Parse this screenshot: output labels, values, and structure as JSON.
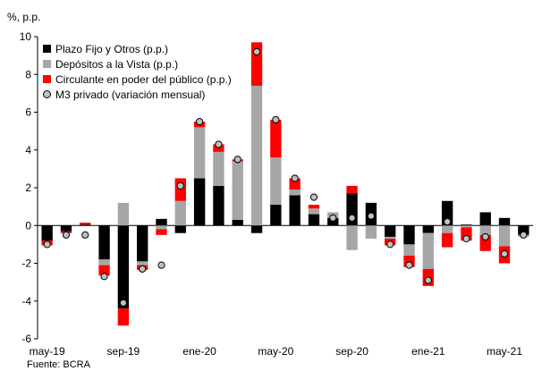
{
  "chart_data": {
    "type": "bar",
    "stacked": true,
    "unit_label": "%, p.p.",
    "source": "Fuente: BCRA",
    "ylim": [
      -6,
      10
    ],
    "yticks": [
      -6,
      -4,
      -2,
      0,
      2,
      4,
      6,
      8,
      10
    ],
    "x_tick_labels": [
      {
        "index": 0,
        "label": "may-19"
      },
      {
        "index": 4,
        "label": "sep-19"
      },
      {
        "index": 8,
        "label": "ene-20"
      },
      {
        "index": 12,
        "label": "may-20"
      },
      {
        "index": 16,
        "label": "sep-20"
      },
      {
        "index": 20,
        "label": "ene-21"
      },
      {
        "index": 24,
        "label": "may-21"
      }
    ],
    "legend_position": "top-left",
    "series": [
      {
        "name": "Plazo Fijo y Otros (p.p.)",
        "color": "#000000",
        "values": [
          -0.8,
          -0.3,
          0.05,
          -1.8,
          -4.4,
          -1.9,
          0.35,
          -0.4,
          2.5,
          2.1,
          0.3,
          -0.4,
          1.1,
          1.6,
          0.6,
          0.4,
          1.7,
          1.2,
          -0.6,
          -1.0,
          -0.4,
          1.3,
          0.05,
          0.7,
          0.4,
          -0.5
        ]
      },
      {
        "name": "Depósitos a la Vista (p.p.)",
        "color": "#a6a6a6",
        "values": [
          0.0,
          0.0,
          0.0,
          -0.3,
          1.2,
          -0.2,
          -0.2,
          1.3,
          2.7,
          1.8,
          3.1,
          7.4,
          2.5,
          0.3,
          0.3,
          0.3,
          -1.3,
          -0.7,
          -0.1,
          -0.6,
          -1.9,
          -0.4,
          -0.1,
          -0.5,
          -1.1,
          -0.1
        ]
      },
      {
        "name": "Circulante en poder del público (p.p.)",
        "color": "#ff0000",
        "values": [
          -0.25,
          -0.1,
          0.1,
          -0.55,
          -0.9,
          -0.25,
          -0.3,
          1.2,
          0.3,
          0.4,
          0.1,
          2.3,
          2.0,
          0.6,
          0.2,
          0.0,
          0.4,
          0.0,
          -0.35,
          -0.6,
          -0.9,
          -0.75,
          -0.7,
          -0.85,
          -0.9,
          0.0
        ]
      }
    ],
    "marker_series": {
      "name": "M3 privado (variación mensual)",
      "color": "#bfbfbf",
      "values": [
        -1.0,
        -0.5,
        -0.5,
        -2.7,
        -4.1,
        -2.3,
        -2.1,
        2.1,
        5.5,
        4.3,
        3.5,
        9.2,
        5.6,
        2.5,
        1.5,
        0.4,
        0.4,
        0.5,
        -1.0,
        -2.1,
        -2.9,
        0.2,
        -0.7,
        -0.6,
        -1.5,
        -0.5
      ]
    }
  }
}
